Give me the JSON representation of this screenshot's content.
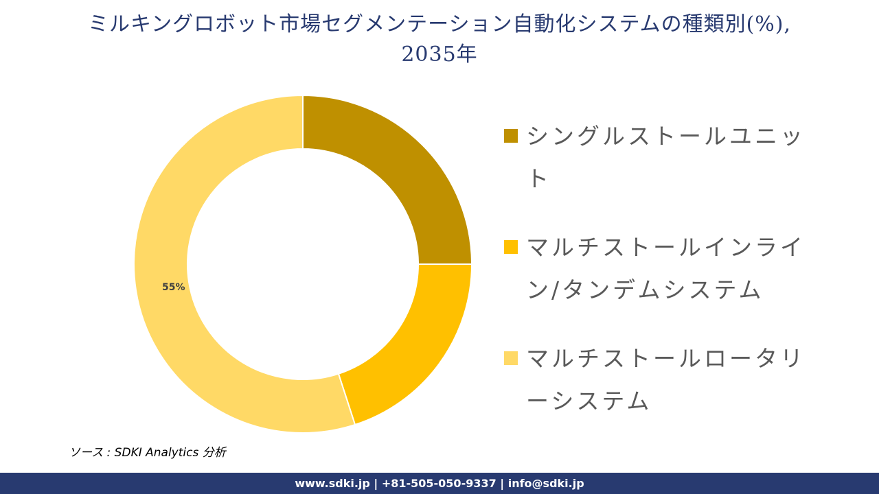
{
  "title": {
    "line1": "ミルキングロボット市場セグメンテーション自動化システムの種類別(%),",
    "line2": "2035年"
  },
  "chart_data": {
    "type": "pie",
    "subtype": "donut",
    "title": "ミルキングロボット市場セグメンテーション自動化システムの種類別(%), 2035年",
    "categories": [
      "シングルストールユニット",
      "マルチストールインライン/タンデムシステム",
      "マルチストールロータリーシステム"
    ],
    "values": [
      25,
      20,
      55
    ],
    "colors": [
      "#bf9000",
      "#ffc000",
      "#ffd966"
    ],
    "data_labels": [
      "",
      "",
      "55%"
    ],
    "legend_position": "right",
    "start_angle": 0,
    "direction": "clockwise"
  },
  "legend": {
    "items": [
      {
        "label": "シングルストールユニット",
        "color": "#bf9000"
      },
      {
        "label": "マルチストールインライン/タンデムシステム",
        "color": "#ffc000"
      },
      {
        "label": "マルチストールロータリーシステム",
        "color": "#ffd966"
      }
    ]
  },
  "labels": {
    "slice3": "55%"
  },
  "source": "ソース : SDKI Analytics 分析",
  "footer": "www.sdki.jp | +81-505-050-9337 | info@sdki.jp"
}
